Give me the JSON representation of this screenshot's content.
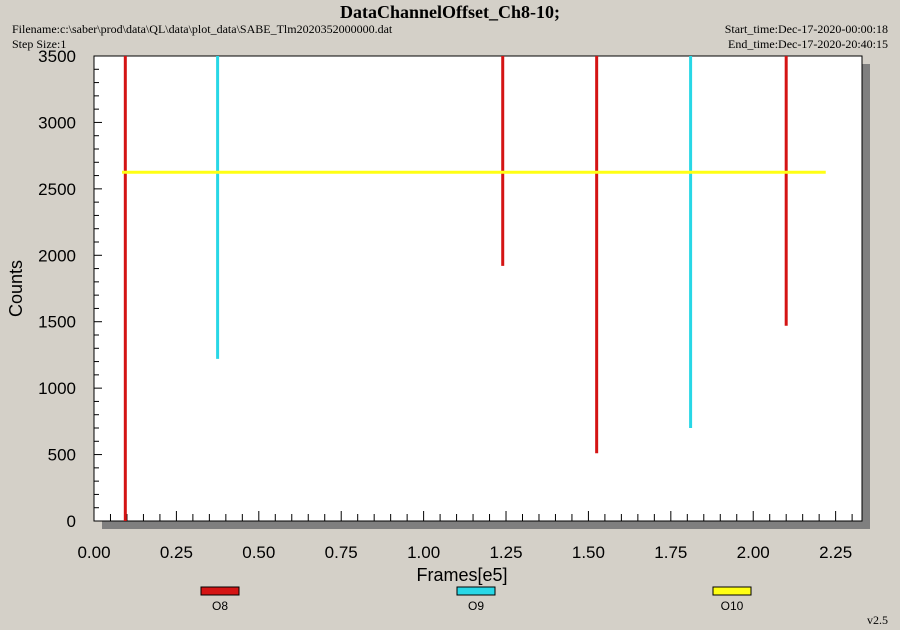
{
  "header": {
    "title": "DataChannelOffset_Ch8-10;",
    "filename": "Filename:c:\\saber\\prod\\data\\QL\\data\\plot_data\\SABE_Tlm2020352000000.dat",
    "step_size": "Step Size:1",
    "start_time": "Start_time:Dec-17-2020-00:00:18",
    "end_time": "End_time:Dec-17-2020-20:40:15"
  },
  "version": "v2.5",
  "colors": {
    "O8": "#d41414",
    "O9": "#28d7e6",
    "O10": "#ffff14",
    "plot_bg": "#ffffff",
    "shadow": "#7f7f7f"
  },
  "chart_data": {
    "type": "line",
    "xlabel": "Frames[e5]",
    "ylabel": "Counts",
    "xlim": [
      0,
      2.33
    ],
    "ylim": [
      0,
      3500
    ],
    "xticks": [
      "0.00",
      "0.25",
      "0.50",
      "0.75",
      "1.00",
      "1.25",
      "1.50",
      "1.75",
      "2.00",
      "2.25"
    ],
    "yticks": [
      "0",
      "500",
      "1000",
      "1500",
      "2000",
      "2500",
      "3000",
      "3500"
    ],
    "legend_position": "bottom",
    "series": [
      {
        "name": "O8",
        "color": "#d41414",
        "spikes": [
          {
            "x": 0.095,
            "y_from": 0,
            "y_to": 3500
          },
          {
            "x": 1.24,
            "y_from": 1920,
            "y_to": 3500
          },
          {
            "x": 1.525,
            "y_from": 510,
            "y_to": 3500
          },
          {
            "x": 2.1,
            "y_from": 1470,
            "y_to": 3500
          }
        ]
      },
      {
        "name": "O9",
        "color": "#28d7e6",
        "spikes": [
          {
            "x": 0.375,
            "y_from": 1220,
            "y_to": 3500
          },
          {
            "x": 1.81,
            "y_from": 700,
            "y_to": 3500
          }
        ]
      },
      {
        "name": "O10",
        "color": "#ffff14",
        "hline": {
          "y": 2625,
          "x_from": 0.085,
          "x_to": 2.22
        }
      }
    ]
  }
}
